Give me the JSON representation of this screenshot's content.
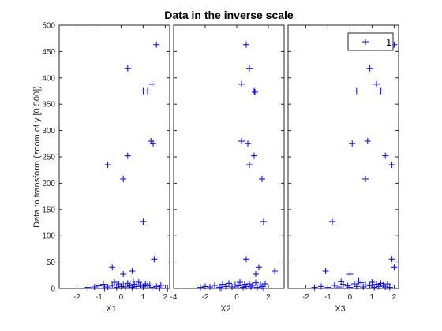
{
  "chart_data": {
    "type": "scatter",
    "title": "Data in the inverse scale",
    "ylabel": "Data to transform (zoom of y [0 500])",
    "ylim": [
      0,
      500
    ],
    "yticks": [
      0,
      50,
      100,
      150,
      200,
      250,
      300,
      350,
      400,
      450,
      500
    ],
    "marker": "+",
    "marker_color": "#0000ff",
    "legend": {
      "labels": [
        "1"
      ],
      "position": "top-right of third panel"
    },
    "panels": [
      {
        "xlabel": "X1",
        "xlim": [
          -2.8,
          2.2
        ],
        "xticks": [
          -2,
          -1,
          0,
          1,
          2
        ],
        "tick_labels": [
          "-2",
          "-1",
          "0",
          "1",
          "2"
        ],
        "points": [
          [
            1.6,
            463
          ],
          [
            0.3,
            418
          ],
          [
            1.4,
            388
          ],
          [
            1.0,
            375
          ],
          [
            1.2,
            375
          ],
          [
            1.35,
            280
          ],
          [
            1.45,
            275
          ],
          [
            0.3,
            252
          ],
          [
            -0.6,
            235
          ],
          [
            0.1,
            208
          ],
          [
            1.0,
            127
          ],
          [
            1.5,
            55
          ],
          [
            -0.4,
            40
          ],
          [
            0.5,
            33
          ],
          [
            0.1,
            27
          ],
          [
            -1.5,
            2
          ],
          [
            -1.2,
            3
          ],
          [
            -1.0,
            5
          ],
          [
            -0.8,
            8
          ],
          [
            -0.6,
            3
          ],
          [
            -0.4,
            6
          ],
          [
            -0.2,
            2
          ],
          [
            -0.1,
            9
          ],
          [
            0.0,
            4
          ],
          [
            0.1,
            7
          ],
          [
            0.2,
            3
          ],
          [
            0.3,
            10
          ],
          [
            0.4,
            5
          ],
          [
            0.5,
            2
          ],
          [
            0.6,
            8
          ],
          [
            0.7,
            4
          ],
          [
            0.8,
            12
          ],
          [
            0.9,
            6
          ],
          [
            1.0,
            3
          ],
          [
            1.1,
            9
          ],
          [
            1.2,
            5
          ],
          [
            1.3,
            7
          ],
          [
            1.4,
            2
          ],
          [
            1.6,
            4
          ],
          [
            1.8,
            6
          ],
          [
            2.1,
            0
          ],
          [
            -0.3,
            12
          ],
          [
            0.55,
            14
          ],
          [
            -0.75,
            1
          ],
          [
            1.75,
            1
          ]
        ]
      },
      {
        "xlabel": "X2",
        "xlim": [
          -4,
          3
        ],
        "xticks": [
          -4,
          -2,
          0,
          2
        ],
        "tick_labels": [
          "-4",
          "-2",
          "0",
          "2"
        ],
        "points": [
          [
            0.6,
            463
          ],
          [
            0.8,
            418
          ],
          [
            0.3,
            388
          ],
          [
            1.1,
            375
          ],
          [
            1.15,
            373
          ],
          [
            0.3,
            280
          ],
          [
            0.7,
            275
          ],
          [
            1.1,
            252
          ],
          [
            0.8,
            235
          ],
          [
            1.6,
            208
          ],
          [
            1.7,
            127
          ],
          [
            0.6,
            55
          ],
          [
            1.4,
            40
          ],
          [
            2.4,
            33
          ],
          [
            1.2,
            27
          ],
          [
            -2.3,
            2
          ],
          [
            -2.0,
            4
          ],
          [
            -1.7,
            3
          ],
          [
            -1.4,
            6
          ],
          [
            -1.1,
            2
          ],
          [
            -0.9,
            8
          ],
          [
            -0.7,
            4
          ],
          [
            -0.5,
            10
          ],
          [
            -0.3,
            3
          ],
          [
            -0.1,
            7
          ],
          [
            0.1,
            5
          ],
          [
            0.2,
            12
          ],
          [
            0.4,
            2
          ],
          [
            0.5,
            8
          ],
          [
            0.6,
            4
          ],
          [
            0.8,
            9
          ],
          [
            0.9,
            3
          ],
          [
            1.0,
            6
          ],
          [
            1.2,
            11
          ],
          [
            1.3,
            2
          ],
          [
            1.5,
            7
          ],
          [
            1.6,
            4
          ],
          [
            1.8,
            9
          ],
          [
            -1.0,
            1
          ],
          [
            1.7,
            1
          ]
        ]
      },
      {
        "xlabel": "X3",
        "xlim": [
          -2.8,
          2.2
        ],
        "xticks": [
          -2,
          -1,
          0,
          1,
          2
        ],
        "tick_labels": [
          "-2",
          "-1",
          "0",
          "1",
          "2"
        ],
        "points": [
          [
            2.0,
            463
          ],
          [
            0.9,
            418
          ],
          [
            1.2,
            388
          ],
          [
            0.3,
            375
          ],
          [
            1.4,
            375
          ],
          [
            0.8,
            280
          ],
          [
            0.1,
            275
          ],
          [
            1.6,
            252
          ],
          [
            1.9,
            235
          ],
          [
            0.7,
            208
          ],
          [
            -0.8,
            127
          ],
          [
            1.9,
            55
          ],
          [
            2.0,
            40
          ],
          [
            -1.1,
            33
          ],
          [
            0.0,
            27
          ],
          [
            -1.6,
            2
          ],
          [
            -1.3,
            4
          ],
          [
            -1.0,
            2
          ],
          [
            -0.7,
            6
          ],
          [
            -0.5,
            3
          ],
          [
            -0.3,
            8
          ],
          [
            -0.1,
            5
          ],
          [
            0.0,
            2
          ],
          [
            0.2,
            9
          ],
          [
            0.3,
            4
          ],
          [
            0.5,
            11
          ],
          [
            0.6,
            3
          ],
          [
            0.7,
            7
          ],
          [
            0.9,
            5
          ],
          [
            1.0,
            12
          ],
          [
            1.1,
            2
          ],
          [
            1.2,
            8
          ],
          [
            1.3,
            4
          ],
          [
            1.5,
            6
          ],
          [
            1.6,
            3
          ],
          [
            1.7,
            9
          ],
          [
            1.8,
            2
          ],
          [
            -0.4,
            13
          ],
          [
            0.4,
            14
          ],
          [
            1.4,
            10
          ]
        ]
      }
    ]
  }
}
